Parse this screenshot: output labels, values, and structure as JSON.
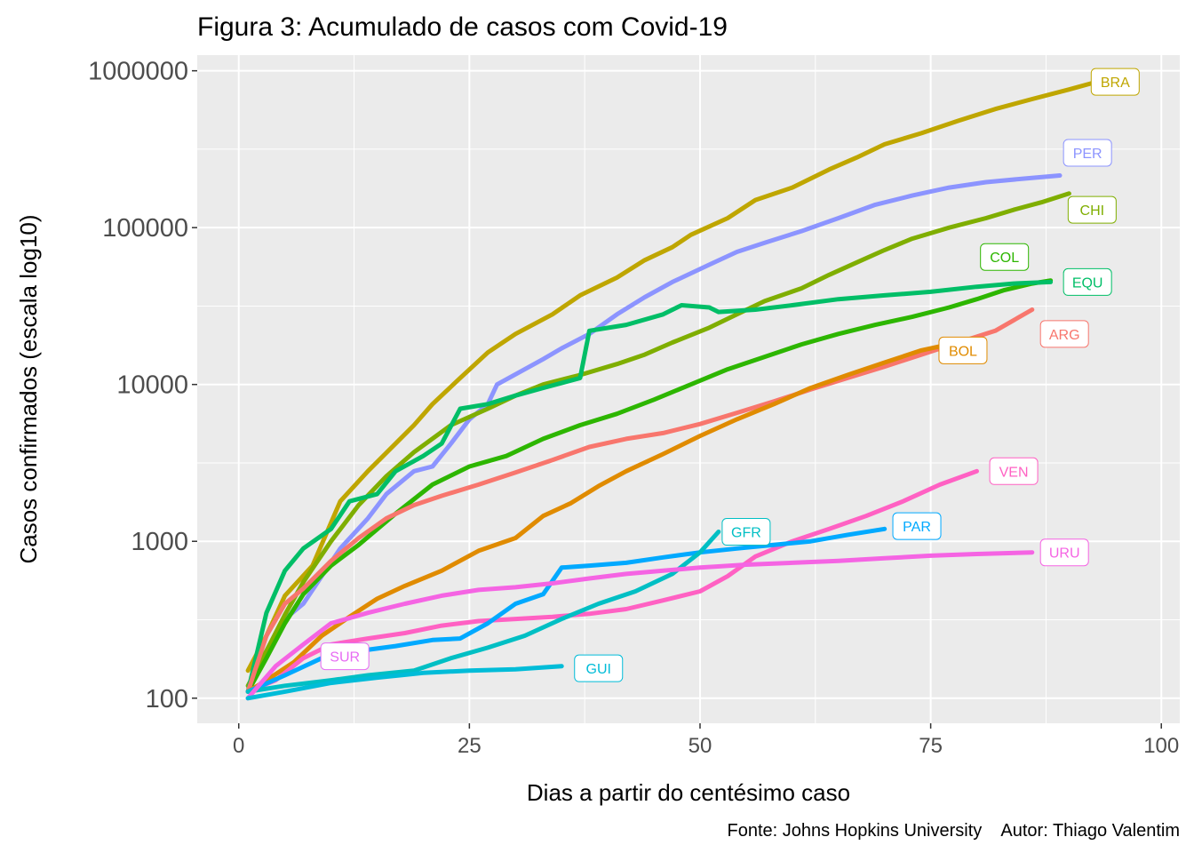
{
  "chart_data": {
    "type": "line",
    "title": "Figura 3: Acumulado de casos com Covid-19",
    "xlabel": "Dias a partir do centésimo caso",
    "ylabel": "Casos confirmados (escala log10)",
    "caption": "Fonte: Johns Hopkins University    Autor: Thiago Valentim",
    "xlim": [
      -4.5,
      102
    ],
    "ylim_log10": [
      1.84,
      6.1
    ],
    "x_scale": "linear",
    "y_scale": "log10",
    "x_ticks": [
      0,
      25,
      50,
      75,
      100
    ],
    "y_ticks": [
      100,
      1000,
      10000,
      100000,
      1000000
    ],
    "y_tick_labels": [
      "100",
      "1000",
      "10000",
      "100000",
      "1000000"
    ],
    "grid": true,
    "legend": "none (direct labels at line ends)",
    "panel_background": "#ebebeb",
    "series": [
      {
        "name": "BRA",
        "color": "#BFA600",
        "label_at": [
          95,
          850000
        ],
        "points": [
          [
            1,
            150
          ],
          [
            3,
            250
          ],
          [
            5,
            450
          ],
          [
            8,
            700
          ],
          [
            11,
            1800
          ],
          [
            14,
            2800
          ],
          [
            17,
            4200
          ],
          [
            19,
            5500
          ],
          [
            21,
            7500
          ],
          [
            24,
            11000
          ],
          [
            27,
            16000
          ],
          [
            30,
            21000
          ],
          [
            34,
            28000
          ],
          [
            37,
            37000
          ],
          [
            41,
            48000
          ],
          [
            44,
            62000
          ],
          [
            47,
            75000
          ],
          [
            49,
            90000
          ],
          [
            53,
            115000
          ],
          [
            56,
            150000
          ],
          [
            60,
            180000
          ],
          [
            64,
            235000
          ],
          [
            67,
            280000
          ],
          [
            70,
            340000
          ],
          [
            74,
            400000
          ],
          [
            78,
            480000
          ],
          [
            82,
            570000
          ],
          [
            86,
            660000
          ],
          [
            90,
            760000
          ],
          [
            93,
            850000
          ]
        ]
      },
      {
        "name": "PER",
        "color": "#8C94FF",
        "label_at": [
          92,
          300000
        ],
        "points": [
          [
            1,
            110
          ],
          [
            3,
            200
          ],
          [
            5,
            320
          ],
          [
            7,
            400
          ],
          [
            9,
            600
          ],
          [
            11,
            900
          ],
          [
            14,
            1400
          ],
          [
            16,
            2000
          ],
          [
            19,
            2800
          ],
          [
            21,
            3000
          ],
          [
            23,
            4200
          ],
          [
            25,
            6000
          ],
          [
            27,
            7500
          ],
          [
            28,
            10000
          ],
          [
            31,
            12500
          ],
          [
            33,
            14500
          ],
          [
            35,
            17000
          ],
          [
            38,
            21000
          ],
          [
            41,
            28000
          ],
          [
            44,
            36000
          ],
          [
            47,
            45000
          ],
          [
            51,
            58000
          ],
          [
            54,
            70000
          ],
          [
            57,
            80000
          ],
          [
            61,
            95000
          ],
          [
            65,
            115000
          ],
          [
            69,
            140000
          ],
          [
            73,
            160000
          ],
          [
            77,
            180000
          ],
          [
            81,
            195000
          ],
          [
            85,
            205000
          ],
          [
            89,
            215000
          ]
        ]
      },
      {
        "name": "CHI",
        "color": "#7FAE00",
        "label_at": [
          92.5,
          130000
        ],
        "points": [
          [
            1,
            120
          ],
          [
            3,
            200
          ],
          [
            5,
            340
          ],
          [
            7,
            550
          ],
          [
            10,
            1000
          ],
          [
            13,
            1700
          ],
          [
            16,
            2600
          ],
          [
            19,
            3700
          ],
          [
            23,
            5500
          ],
          [
            27,
            7000
          ],
          [
            30,
            8500
          ],
          [
            33,
            10000
          ],
          [
            37,
            11500
          ],
          [
            41,
            13500
          ],
          [
            44,
            15500
          ],
          [
            47,
            18500
          ],
          [
            51,
            23000
          ],
          [
            54,
            28000
          ],
          [
            57,
            34000
          ],
          [
            61,
            41000
          ],
          [
            64,
            50000
          ],
          [
            67,
            60000
          ],
          [
            70,
            72000
          ],
          [
            73,
            85000
          ],
          [
            77,
            100000
          ],
          [
            81,
            115000
          ],
          [
            84,
            130000
          ],
          [
            87,
            145000
          ],
          [
            90,
            165000
          ]
        ]
      },
      {
        "name": "COL",
        "color": "#2DB600",
        "label_at": [
          83,
          65000
        ],
        "points": [
          [
            1,
            110
          ],
          [
            3,
            180
          ],
          [
            5,
            300
          ],
          [
            7,
            460
          ],
          [
            10,
            700
          ],
          [
            13,
            950
          ],
          [
            17,
            1500
          ],
          [
            21,
            2300
          ],
          [
            25,
            3000
          ],
          [
            29,
            3500
          ],
          [
            33,
            4500
          ],
          [
            37,
            5500
          ],
          [
            41,
            6500
          ],
          [
            45,
            8000
          ],
          [
            49,
            10000
          ],
          [
            53,
            12500
          ],
          [
            57,
            15000
          ],
          [
            61,
            18000
          ],
          [
            65,
            21000
          ],
          [
            69,
            24000
          ],
          [
            73,
            27000
          ],
          [
            77,
            31000
          ],
          [
            80,
            35000
          ],
          [
            83,
            40000
          ],
          [
            86,
            44000
          ],
          [
            88,
            46000
          ]
        ]
      },
      {
        "name": "EQU",
        "color": "#00BE67",
        "label_at": [
          92,
          45000
        ],
        "points": [
          [
            1,
            110
          ],
          [
            3,
            350
          ],
          [
            5,
            650
          ],
          [
            7,
            900
          ],
          [
            10,
            1200
          ],
          [
            12,
            1800
          ],
          [
            15,
            2000
          ],
          [
            17,
            2800
          ],
          [
            20,
            3500
          ],
          [
            22,
            4200
          ],
          [
            24,
            7000
          ],
          [
            27,
            7500
          ],
          [
            30,
            8500
          ],
          [
            33,
            9500
          ],
          [
            37,
            11000
          ],
          [
            38,
            22000
          ],
          [
            42,
            24000
          ],
          [
            46,
            28000
          ],
          [
            48,
            32000
          ],
          [
            51,
            31000
          ],
          [
            52,
            29000
          ],
          [
            56,
            30000
          ],
          [
            60,
            32000
          ],
          [
            65,
            35000
          ],
          [
            70,
            37000
          ],
          [
            75,
            39000
          ],
          [
            80,
            42000
          ],
          [
            84,
            44000
          ],
          [
            88,
            45000
          ]
        ]
      },
      {
        "name": "ARG",
        "color": "#F8766D",
        "label_at": [
          89.5,
          21000
        ],
        "points": [
          [
            1,
            110
          ],
          [
            3,
            250
          ],
          [
            5,
            400
          ],
          [
            7,
            500
          ],
          [
            10,
            750
          ],
          [
            13,
            1050
          ],
          [
            16,
            1400
          ],
          [
            19,
            1700
          ],
          [
            22,
            1950
          ],
          [
            26,
            2300
          ],
          [
            30,
            2750
          ],
          [
            34,
            3300
          ],
          [
            38,
            4000
          ],
          [
            42,
            4500
          ],
          [
            46,
            4900
          ],
          [
            50,
            5600
          ],
          [
            54,
            6600
          ],
          [
            58,
            7800
          ],
          [
            62,
            9300
          ],
          [
            66,
            11000
          ],
          [
            70,
            13000
          ],
          [
            74,
            15500
          ],
          [
            78,
            18500
          ],
          [
            82,
            22000
          ],
          [
            86,
            30000
          ]
        ]
      },
      {
        "name": "BOL",
        "color": "#E08B00",
        "label_at": [
          78.5,
          16500
        ],
        "points": [
          [
            1,
            110
          ],
          [
            3,
            130
          ],
          [
            6,
            170
          ],
          [
            9,
            250
          ],
          [
            12,
            330
          ],
          [
            15,
            430
          ],
          [
            18,
            520
          ],
          [
            22,
            650
          ],
          [
            26,
            870
          ],
          [
            30,
            1050
          ],
          [
            33,
            1450
          ],
          [
            36,
            1750
          ],
          [
            39,
            2250
          ],
          [
            42,
            2800
          ],
          [
            46,
            3600
          ],
          [
            50,
            4700
          ],
          [
            54,
            6000
          ],
          [
            58,
            7500
          ],
          [
            62,
            9500
          ],
          [
            66,
            11500
          ],
          [
            70,
            13800
          ],
          [
            74,
            16500
          ],
          [
            77,
            18000
          ]
        ]
      },
      {
        "name": "VEN",
        "color": "#FF61C3",
        "label_at": [
          84,
          2800
        ],
        "points": [
          [
            1,
            110
          ],
          [
            4,
            130
          ],
          [
            7,
            180
          ],
          [
            10,
            220
          ],
          [
            14,
            240
          ],
          [
            18,
            260
          ],
          [
            22,
            290
          ],
          [
            26,
            310
          ],
          [
            30,
            320
          ],
          [
            34,
            330
          ],
          [
            38,
            345
          ],
          [
            42,
            370
          ],
          [
            46,
            420
          ],
          [
            50,
            480
          ],
          [
            53,
            600
          ],
          [
            56,
            800
          ],
          [
            60,
            1000
          ],
          [
            64,
            1200
          ],
          [
            68,
            1450
          ],
          [
            72,
            1800
          ],
          [
            76,
            2300
          ],
          [
            80,
            2800
          ]
        ]
      },
      {
        "name": "PAR",
        "color": "#00A9FF",
        "label_at": [
          73.5,
          1250
        ],
        "points": [
          [
            1,
            110
          ],
          [
            5,
            140
          ],
          [
            9,
            180
          ],
          [
            13,
            200
          ],
          [
            17,
            215
          ],
          [
            21,
            235
          ],
          [
            24,
            240
          ],
          [
            27,
            300
          ],
          [
            30,
            400
          ],
          [
            33,
            460
          ],
          [
            35,
            680
          ],
          [
            38,
            700
          ],
          [
            42,
            730
          ],
          [
            46,
            790
          ],
          [
            50,
            850
          ],
          [
            54,
            900
          ],
          [
            58,
            950
          ],
          [
            62,
            1000
          ],
          [
            66,
            1100
          ],
          [
            70,
            1200
          ]
        ]
      },
      {
        "name": "GFR",
        "color": "#00BFC4",
        "label_at": [
          55,
          1150
        ],
        "points": [
          [
            1,
            110
          ],
          [
            5,
            120
          ],
          [
            10,
            130
          ],
          [
            14,
            140
          ],
          [
            19,
            150
          ],
          [
            23,
            180
          ],
          [
            27,
            210
          ],
          [
            31,
            250
          ],
          [
            35,
            320
          ],
          [
            39,
            400
          ],
          [
            43,
            480
          ],
          [
            47,
            620
          ],
          [
            50,
            850
          ],
          [
            52,
            1150
          ]
        ]
      },
      {
        "name": "URU",
        "color": "#F564E3",
        "label_at": [
          89.5,
          850
        ],
        "points": [
          [
            1,
            100
          ],
          [
            4,
            160
          ],
          [
            7,
            220
          ],
          [
            10,
            300
          ],
          [
            14,
            350
          ],
          [
            18,
            400
          ],
          [
            22,
            450
          ],
          [
            26,
            490
          ],
          [
            30,
            510
          ],
          [
            34,
            540
          ],
          [
            38,
            580
          ],
          [
            42,
            620
          ],
          [
            46,
            650
          ],
          [
            50,
            680
          ],
          [
            55,
            710
          ],
          [
            60,
            730
          ],
          [
            65,
            750
          ],
          [
            70,
            780
          ],
          [
            75,
            810
          ],
          [
            80,
            830
          ],
          [
            86,
            850
          ]
        ]
      },
      {
        "name": "SUR",
        "color": "#E76BF3",
        "label_at": [
          11.5,
          185
        ],
        "points": []
      },
      {
        "name": "GUI",
        "color": "#00BCD8",
        "label_at": [
          39,
          155
        ],
        "points": [
          [
            1,
            100
          ],
          [
            5,
            110
          ],
          [
            10,
            125
          ],
          [
            15,
            135
          ],
          [
            20,
            145
          ],
          [
            25,
            150
          ],
          [
            30,
            153
          ],
          [
            35,
            160
          ]
        ]
      }
    ]
  }
}
